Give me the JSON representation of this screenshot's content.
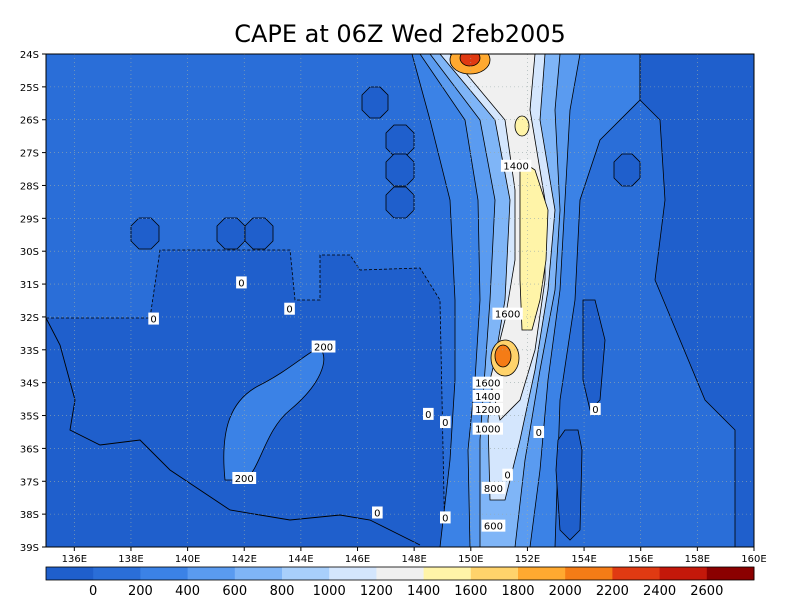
{
  "chart_data": {
    "type": "heatmap",
    "title": "CAPE at 06Z Wed 2feb2005",
    "x_ticks": [
      "136E",
      "138E",
      "140E",
      "142E",
      "144E",
      "146E",
      "148E",
      "150E",
      "152E",
      "154E",
      "156E",
      "158E",
      "160E"
    ],
    "y_ticks": [
      "24S",
      "25S",
      "26S",
      "27S",
      "28S",
      "29S",
      "30S",
      "31S",
      "32S",
      "33S",
      "34S",
      "35S",
      "36S",
      "37S",
      "38S",
      "39S"
    ],
    "xlim": [
      135,
      160
    ],
    "ylim": [
      -39,
      -24
    ],
    "grid": true,
    "colorbar": {
      "labels": [
        "0",
        "200",
        "400",
        "600",
        "800",
        "1000",
        "1200",
        "1400",
        "1600",
        "1800",
        "2000",
        "2200",
        "2400",
        "2600"
      ],
      "colors": [
        "#1f5fcc",
        "#2a6ed8",
        "#3b82e6",
        "#5a9bf0",
        "#7fb5f7",
        "#a8cffb",
        "#d4e6fd",
        "#f0f0f0",
        "#fff4a8",
        "#ffd36b",
        "#ffa930",
        "#f57c16",
        "#e03a12",
        "#c4180a",
        "#8b0000"
      ]
    },
    "contour_labels": [
      {
        "text": "0",
        "lon": 141.9,
        "lat": -30.95
      },
      {
        "text": "0",
        "lon": 143.6,
        "lat": -31.75
      },
      {
        "text": "0",
        "lon": 138.8,
        "lat": -32.05
      },
      {
        "text": "200",
        "lon": 144.8,
        "lat": -32.9
      },
      {
        "text": "200",
        "lon": 142.0,
        "lat": -36.9
      },
      {
        "text": "0",
        "lon": 148.5,
        "lat": -34.95
      },
      {
        "text": "0",
        "lon": 149.1,
        "lat": -35.2
      },
      {
        "text": "0",
        "lon": 154.4,
        "lat": -34.8
      },
      {
        "text": "0",
        "lon": 152.4,
        "lat": -35.5
      },
      {
        "text": "0",
        "lon": 151.3,
        "lat": -36.8
      },
      {
        "text": "0",
        "lon": 146.7,
        "lat": -37.95
      },
      {
        "text": "0",
        "lon": 149.1,
        "lat": -38.1
      },
      {
        "text": "1400",
        "lon": 151.6,
        "lat": -27.4
      },
      {
        "text": "1600",
        "lon": 151.3,
        "lat": -31.9
      },
      {
        "text": "1600",
        "lon": 150.6,
        "lat": -34.0
      },
      {
        "text": "1400",
        "lon": 150.6,
        "lat": -34.4
      },
      {
        "text": "1200",
        "lon": 150.6,
        "lat": -34.8
      },
      {
        "text": "1000",
        "lon": 150.6,
        "lat": -35.4
      },
      {
        "text": "800",
        "lon": 150.8,
        "lat": -37.2
      },
      {
        "text": "600",
        "lon": 150.8,
        "lat": -38.35
      }
    ]
  }
}
